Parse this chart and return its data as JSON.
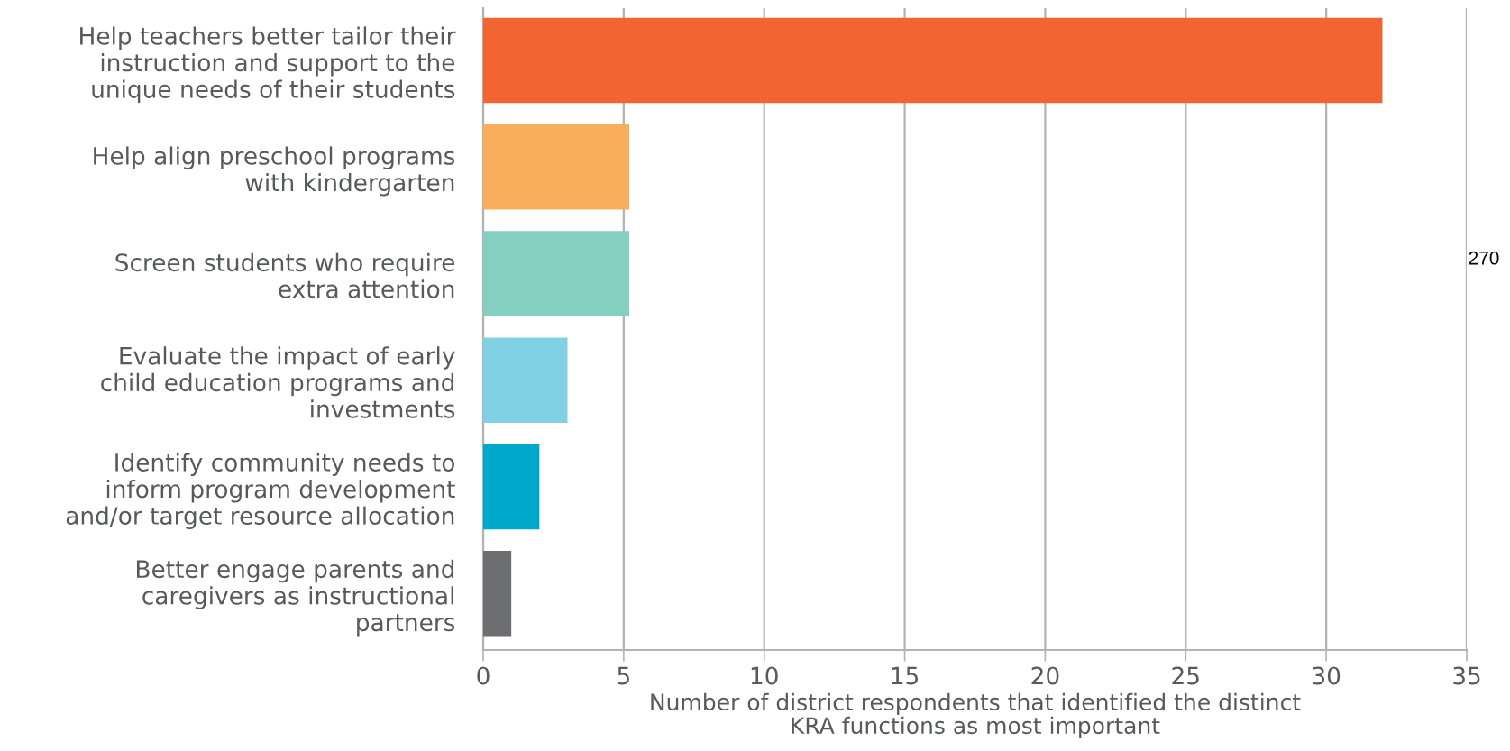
{
  "chart_data": {
    "type": "bar",
    "orientation": "horizontal",
    "categories": [
      "Help teachers better tailor their\ninstruction and support to the\nunique needs of their students",
      "Help align preschool programs\nwith kindergarten",
      "Screen students who require\nextra attention",
      "Evaluate the impact of early\nchild education programs and\ninvestments",
      "Identify community needs to\ninform program development\nand/or target resource allocation",
      "Better engage parents and\ncaregivers as instructional\npartners"
    ],
    "values": [
      32,
      5.2,
      5.2,
      3,
      2,
      1
    ],
    "colors": [
      "#f26532",
      "#f9ae5c",
      "#84cfc0",
      "#80d1e3",
      "#00a9cc",
      "#6d6e70"
    ],
    "xlabel": "Number of district respondents that identified the distinct\nKRA functions as most important",
    "xlim": [
      0,
      35
    ],
    "xticks": [
      0,
      5,
      10,
      15,
      20,
      25,
      30,
      35
    ],
    "grid": "x",
    "legend": false,
    "annotations": [
      "270"
    ]
  }
}
